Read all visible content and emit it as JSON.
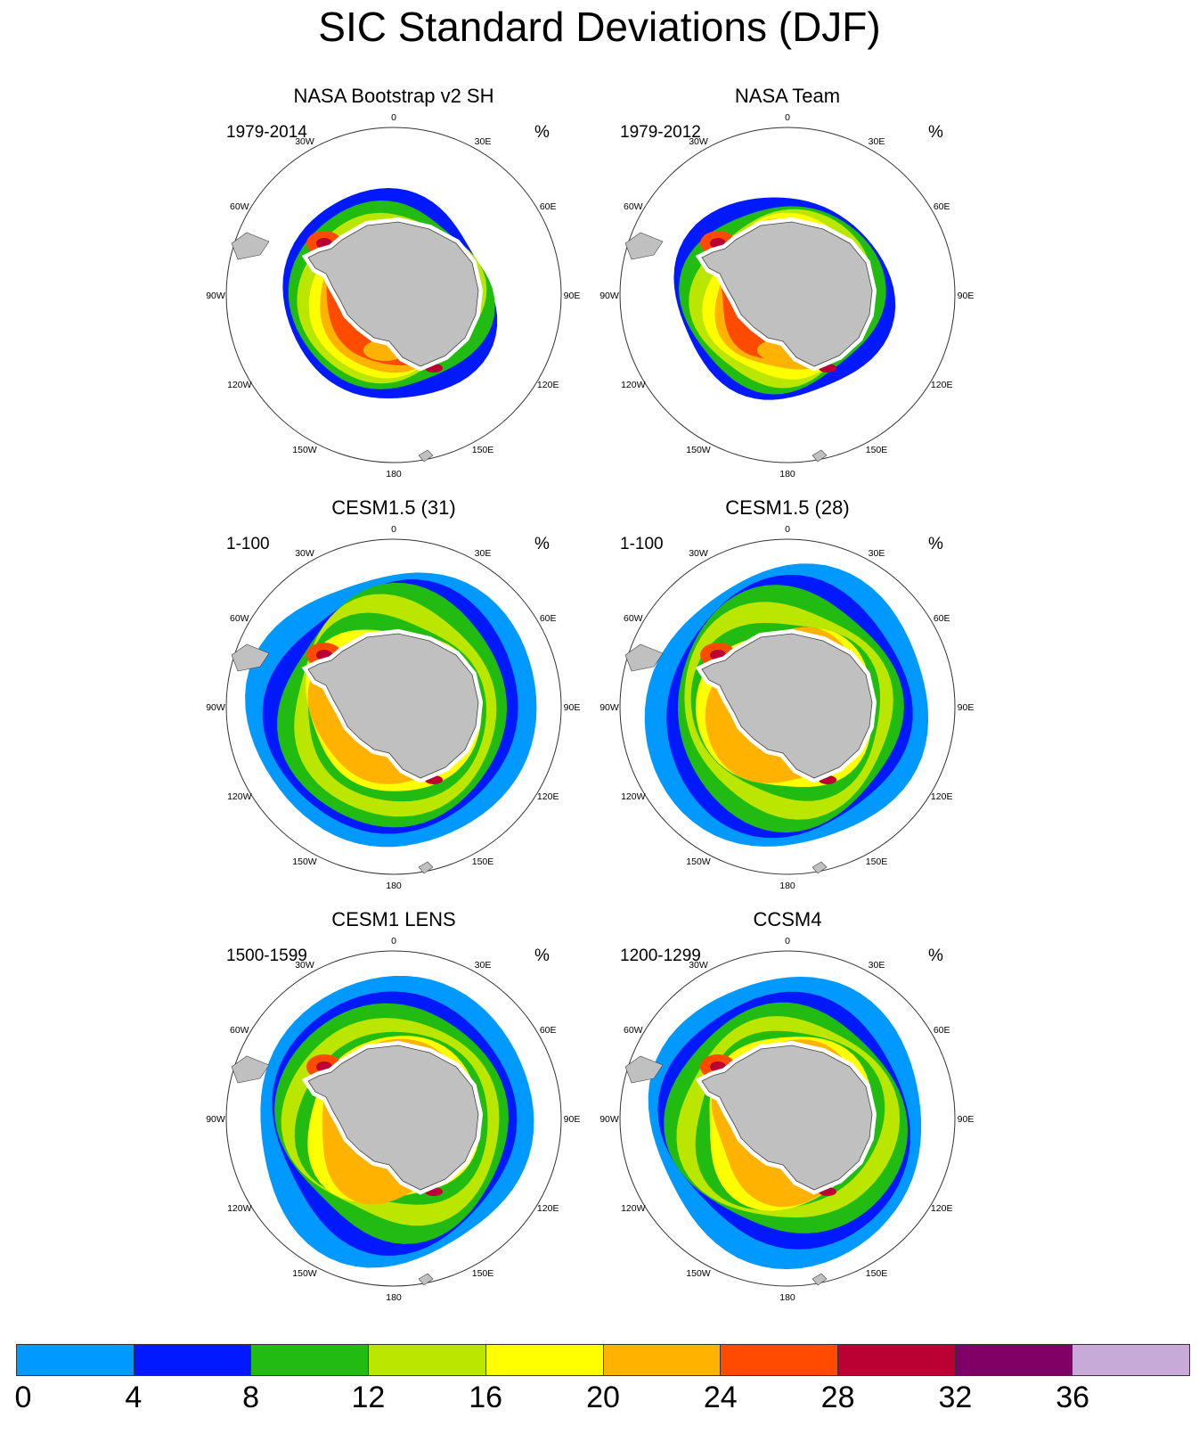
{
  "title": "SIC Standard Deviations (DJF)",
  "longitude_labels": [
    "0",
    "30E",
    "60E",
    "90E",
    "120E",
    "150E",
    "180",
    "150W",
    "120W",
    "90W",
    "60W",
    "30W"
  ],
  "units": "%",
  "panels": [
    {
      "title": "NASA Bootstrap v2 SH",
      "period": "1979-2014",
      "units": "%",
      "ice_extent": "summer"
    },
    {
      "title": "NASA Team",
      "period": "1979-2012",
      "units": "%",
      "ice_extent": "summer"
    },
    {
      "title": "CESM1.5 (31)",
      "period": "1-100",
      "units": "%",
      "ice_extent": "model"
    },
    {
      "title": "CESM1.5 (28)",
      "period": "1-100",
      "units": "%",
      "ice_extent": "model"
    },
    {
      "title": "CESM1 LENS",
      "period": "1500-1599",
      "units": "%",
      "ice_extent": "model"
    },
    {
      "title": "CCSM4",
      "period": "1200-1299",
      "units": "%",
      "ice_extent": "model"
    }
  ],
  "colorbar": {
    "labels": [
      "0",
      "4",
      "8",
      "12",
      "16",
      "20",
      "24",
      "28",
      "32",
      "36"
    ],
    "colors": [
      "#0099ff",
      "#0019ff",
      "#22bb11",
      "#bbe600",
      "#ffff00",
      "#ffb300",
      "#ff4b00",
      "#bb0033",
      "#800066",
      "#c8aad8"
    ]
  },
  "colors": {
    "land": "#c0c0c0",
    "ice_white": "#ffffff",
    "outline": "#444444"
  }
}
